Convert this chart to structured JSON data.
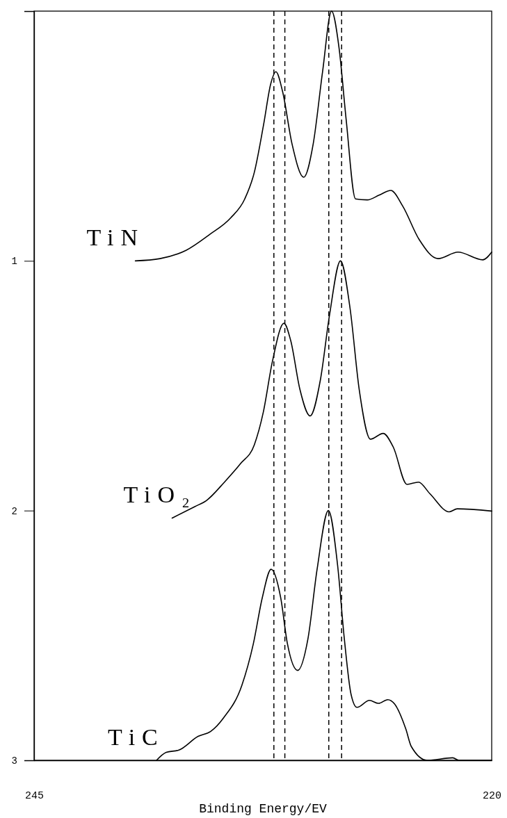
{
  "chart_data": {
    "type": "line",
    "xlabel": "Binding Energy/EV",
    "xlim": [
      245,
      220
    ],
    "xticks": [
      245,
      220
    ],
    "ylim": [
      3,
      0
    ],
    "yticks": [
      1,
      2,
      3
    ],
    "series": [
      {
        "name": "TiN",
        "color": "#000000",
        "x": [
          239.47,
          238.12,
          236.7,
          235.42,
          234.26,
          233.49,
          232.97,
          232.46,
          232.07,
          231.79,
          231.43,
          230.91,
          230.27,
          229.75,
          229.24,
          228.75,
          228.34,
          227.95,
          227.44,
          226.8,
          226.15,
          225.51,
          224.86,
          223.96,
          222.93,
          221.84,
          220.49,
          220
        ],
        "values": [
          1.0,
          0.991,
          0.958,
          0.895,
          0.828,
          0.752,
          0.646,
          0.454,
          0.291,
          0.243,
          0.32,
          0.531,
          0.665,
          0.531,
          0.243,
          0.0,
          0.147,
          0.435,
          0.752,
          0.756,
          0.737,
          0.718,
          0.781,
          0.915,
          0.991,
          0.965,
          0.996,
          0.965
        ]
      },
      {
        "name": "TiO₂",
        "color": "#000000",
        "x": [
          237.46,
          236.22,
          235.59,
          234.6,
          233.72,
          232.97,
          232.48,
          231.98,
          231.35,
          230.98,
          230.48,
          229.92,
          229.36,
          228.86,
          228.26,
          227.74,
          227.24,
          226.62,
          225.93,
          225.37,
          224.63,
          224.0,
          223.38,
          222.32,
          221.88,
          220
        ],
        "values": [
          2.03,
          1.984,
          1.96,
          1.886,
          1.812,
          1.737,
          1.607,
          1.403,
          1.25,
          1.319,
          1.514,
          1.621,
          1.477,
          1.217,
          1.0,
          1.189,
          1.514,
          1.714,
          1.691,
          1.747,
          1.895,
          1.886,
          1.932,
          2.005,
          1.993,
          2.002
        ]
      },
      {
        "name": "TiC",
        "color": "#000000",
        "x": [
          238.31,
          237.78,
          237.09,
          236.04,
          235.35,
          234.65,
          233.65,
          233.02,
          232.53,
          232.05,
          231.53,
          231.16,
          230.6,
          230.04,
          229.54,
          228.92,
          228.42,
          228.05,
          227.68,
          227.36,
          226.68,
          226.18,
          225.68,
          225.31,
          224.69,
          224.39,
          223.52,
          222.13,
          221.78,
          220
        ],
        "values": [
          3.0,
          2.968,
          2.959,
          2.904,
          2.884,
          2.83,
          2.7,
          2.533,
          2.348,
          2.235,
          2.348,
          2.533,
          2.64,
          2.514,
          2.236,
          2.0,
          2.218,
          2.514,
          2.737,
          2.788,
          2.76,
          2.772,
          2.757,
          2.774,
          2.875,
          2.945,
          3.0,
          2.99,
          3.0,
          3.0
        ]
      }
    ],
    "ref_lines": [
      {
        "axis": "x",
        "value": 231.9,
        "color": "#000000",
        "line_style": "dashed"
      },
      {
        "axis": "x",
        "value": 231.3,
        "color": "#000000",
        "line_style": "dashed"
      },
      {
        "axis": "x",
        "value": 228.9,
        "color": "#000000",
        "line_style": "dashed"
      },
      {
        "axis": "x",
        "value": 228.2,
        "color": "#000000",
        "line_style": "dashed"
      }
    ]
  }
}
